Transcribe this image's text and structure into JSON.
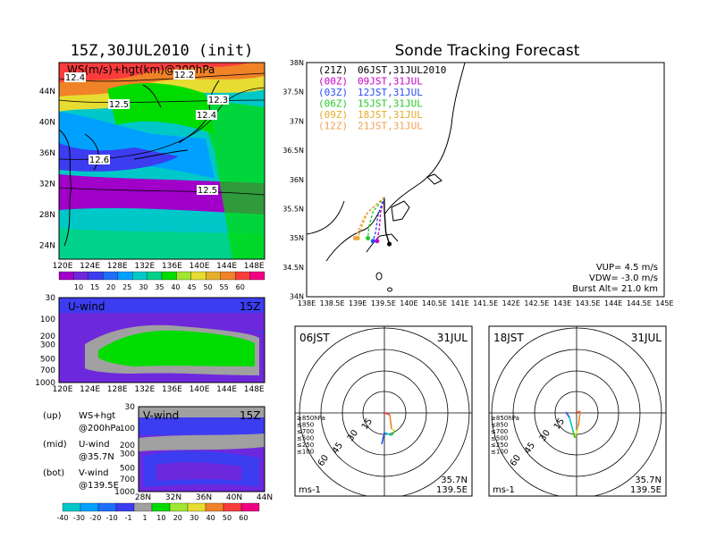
{
  "colors": {
    "ws_scale": [
      "#a000c8",
      "#6e28dc",
      "#3c3cf0",
      "#1e6efa",
      "#00a0ff",
      "#00c8c8",
      "#00d28c",
      "#00dc00",
      "#a0e632",
      "#e6dc32",
      "#e6af2d",
      "#f08228",
      "#fa3c3c",
      "#f00082"
    ],
    "uv_scale": [
      "#00c8c8",
      "#00a0ff",
      "#1e6efa",
      "#3c3cf0",
      "#a0a0a0",
      "#00dc00",
      "#a0e632",
      "#e6dc32",
      "#f08228",
      "#fa3c3c",
      "#f00082"
    ],
    "tracks": [
      "#000000",
      "#c800c8",
      "#2850f0",
      "#28c828",
      "#e6aa28",
      "#f0a050"
    ]
  },
  "left": {
    "main_title": "15Z,30JUL2010 (init)",
    "upper_label": "WS(m/s)+hgt(km)@200hPa",
    "contour_labels": [
      "12.4",
      "12.2",
      "12.3",
      "12.5",
      "12.4",
      "12.6",
      "12.5"
    ],
    "lat_ticks": [
      "44N",
      "40N",
      "36N",
      "32N",
      "28N",
      "24N"
    ],
    "lon_ticks": [
      "120E",
      "124E",
      "128E",
      "132E",
      "136E",
      "140E",
      "144E",
      "148E"
    ],
    "ws_scale_labels": [
      "10",
      "15",
      "20",
      "25",
      "30",
      "35",
      "40",
      "45",
      "50",
      "55",
      "60"
    ],
    "u_title": "U-wind",
    "u_time": "15Z",
    "p_ticks": [
      "30",
      "100",
      "200",
      "300",
      "500",
      "700",
      "1000"
    ],
    "v_title": "V-wind",
    "v_time": "15Z",
    "v_lat_ticks": [
      "28N",
      "32N",
      "36N",
      "40N",
      "44N"
    ],
    "uv_scale_labels": [
      "-40",
      "-30",
      "-20",
      "-10",
      "-1",
      "1",
      "10",
      "20",
      "30",
      "40",
      "50",
      "60"
    ],
    "notes": [
      [
        "(up)",
        "WS+hgt"
      ],
      [
        "",
        "@200hPa"
      ],
      [
        "(mid)",
        "U-wind"
      ],
      [
        "",
        "@35.7N"
      ],
      [
        "(bot)",
        "V-wind"
      ],
      [
        "",
        "@139.5E"
      ]
    ]
  },
  "forecast": {
    "title": "Sonde Tracking Forecast",
    "legend": [
      {
        "code": "(21Z)",
        "label": "06JST,31JUL2010"
      },
      {
        "code": "(00Z)",
        "label": "09JST,31JUL"
      },
      {
        "code": "(03Z)",
        "label": "12JST,31JUL"
      },
      {
        "code": "(06Z)",
        "label": "15JST,31JUL"
      },
      {
        "code": "(09Z)",
        "label": "18JST,31JUL"
      },
      {
        "code": "(12Z)",
        "label": "21JST,31JUL"
      }
    ],
    "lat_ticks": [
      "38N",
      "37.5N",
      "37N",
      "36.5N",
      "36N",
      "35.5N",
      "35N",
      "34.5N",
      "34N"
    ],
    "lon_ticks": [
      "138E",
      "138.5E",
      "139E",
      "139.5E",
      "140E",
      "140.5E",
      "141E",
      "141.5E",
      "142E",
      "142.5E",
      "143E",
      "143.5E",
      "144E",
      "144.5E",
      "145E"
    ],
    "params": [
      "VUP= 4.5 m/s",
      "VDW= -3.0 m/s",
      "Burst Alt= 21.0 km"
    ]
  },
  "hodographs": [
    {
      "time": "06JST",
      "date": "31JUL",
      "lat": "35.7N",
      "lon": "139.5E",
      "unit": "ms-1",
      "ring_labels": [
        "15",
        "30",
        "45",
        "60"
      ]
    },
    {
      "time": "18JST",
      "date": "31JUL",
      "lat": "35.7N",
      "lon": "139.5E",
      "unit": "ms-1",
      "ring_labels": [
        "15",
        "30",
        "45",
        "60"
      ]
    }
  ],
  "hodo_legend": [
    "≥850hPa",
    "≤850",
    "≤700",
    "≤500",
    "≤250",
    "≤100"
  ],
  "chart_data": [
    {
      "type": "heatmap",
      "title": "15Z,30JUL2010 (init)",
      "subtitle": "WS(m/s)+hgt(km)@200hPa",
      "xlim": [
        120,
        149
      ],
      "ylim": [
        22,
        47
      ],
      "scale": [
        10,
        15,
        20,
        25,
        30,
        35,
        40,
        45,
        50,
        55,
        60
      ],
      "contours": [
        12.2,
        12.3,
        12.4,
        12.5,
        12.6
      ]
    },
    {
      "type": "heatmap",
      "title": "U-wind",
      "subtitle": "15Z",
      "x": "lon 120E-148E",
      "y": "pressure 1000-30 hPa"
    },
    {
      "type": "heatmap",
      "title": "V-wind",
      "subtitle": "15Z",
      "x": "lat 28N-44N",
      "y": "pressure 1000-30 hPa",
      "scale": [
        -40,
        -30,
        -20,
        -10,
        -1,
        1,
        10,
        20,
        30,
        40,
        50,
        60
      ]
    },
    {
      "type": "line",
      "title": "Sonde Tracking Forecast",
      "xlim": [
        138,
        145
      ],
      "ylim": [
        34,
        38
      ],
      "series": [
        {
          "name": "06JST,31JUL2010",
          "x": [
            139.52,
            139.52,
            139.55,
            139.62
          ],
          "y": [
            35.7,
            35.5,
            35.1,
            34.9
          ]
        },
        {
          "name": "09JST,31JUL",
          "x": [
            139.52,
            139.45,
            139.42,
            139.38
          ],
          "y": [
            35.7,
            35.45,
            35.15,
            34.95
          ]
        },
        {
          "name": "12JST,31JUL",
          "x": [
            139.52,
            139.4,
            139.35,
            139.3
          ],
          "y": [
            35.7,
            35.4,
            35.1,
            34.95
          ]
        },
        {
          "name": "15JST,31JUL",
          "x": [
            139.52,
            139.3,
            139.22,
            139.2
          ],
          "y": [
            35.7,
            35.45,
            35.2,
            35.0
          ]
        },
        {
          "name": "18JST,31JUL",
          "x": [
            139.52,
            139.2,
            139.08,
            139.0
          ],
          "y": [
            35.7,
            35.45,
            35.2,
            35.0
          ]
        },
        {
          "name": "21JST,31JUL",
          "x": [
            139.52,
            139.15,
            139.02,
            138.95
          ],
          "y": [
            35.7,
            35.4,
            35.15,
            35.0
          ]
        }
      ]
    }
  ]
}
